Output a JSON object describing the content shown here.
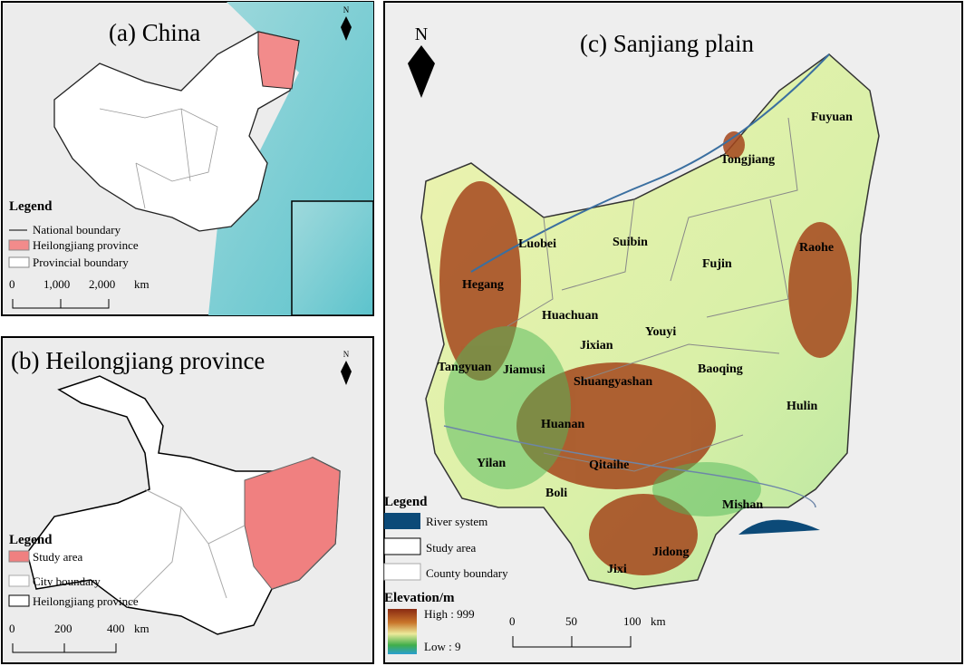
{
  "panel_a": {
    "title": "(a)  China",
    "north": "N",
    "legend": {
      "title": "Legend",
      "items": [
        "National boundary",
        "Heilongjiang province",
        "Provincial boundary"
      ]
    },
    "scale": {
      "labels": [
        "0",
        "1,000",
        "2,000"
      ],
      "unit": "km"
    }
  },
  "panel_b": {
    "title": "(b)  Heilongjiang province",
    "north": "N",
    "legend": {
      "title": "Legend",
      "items": [
        "Study area",
        "City boundary",
        "Heilongjiang province"
      ]
    },
    "scale": {
      "labels": [
        "0",
        "200",
        "400"
      ],
      "unit": "km"
    }
  },
  "panel_c": {
    "title": "(c)  Sanjiang plain",
    "north": "N",
    "counties": [
      "Fuyuan",
      "Tongjiang",
      "Luobei",
      "Suibin",
      "Fujin",
      "Raohe",
      "Hegang",
      "Huachuan",
      "Youyi",
      "Jixian",
      "Tangyuan",
      "Jiamusi",
      "Shuangyashan",
      "Baoqing",
      "Huanan",
      "Hulin",
      "Yilan",
      "Qitaihe",
      "Boli",
      "Mishan",
      "Jidong",
      "Jixi"
    ],
    "legend": {
      "title": "Legend",
      "items": [
        "River system",
        "Study area",
        "County boundary"
      ],
      "elevation_title": "Elevation/m",
      "high": "High : 999",
      "low": "Low : 9"
    },
    "scale": {
      "labels": [
        "0",
        "50",
        "100"
      ],
      "unit": "km"
    }
  }
}
